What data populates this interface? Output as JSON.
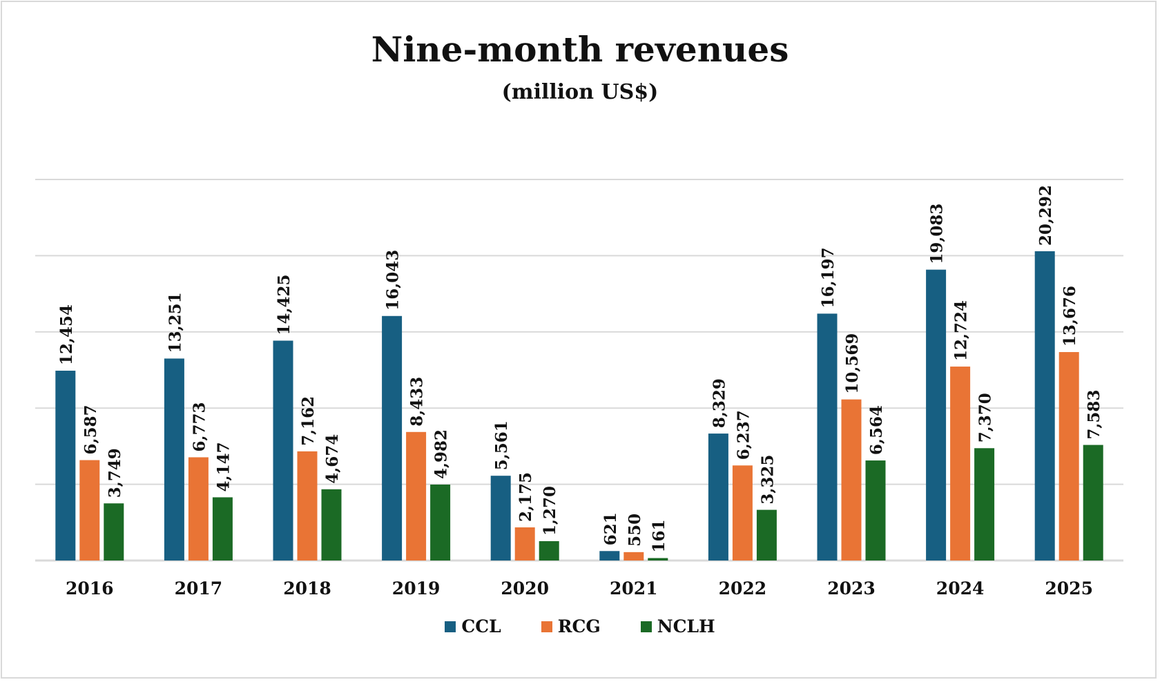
{
  "chart_data": {
    "type": "bar",
    "title": "Nine-month revenues",
    "subtitle": "(million US$)",
    "categories": [
      "2016",
      "2017",
      "2018",
      "2019",
      "2020",
      "2021",
      "2022",
      "2023",
      "2024",
      "2025"
    ],
    "series": [
      {
        "name": "CCL",
        "color": "#175f82",
        "values": [
          12454,
          13251,
          14425,
          16043,
          5561,
          621,
          8329,
          16197,
          19083,
          20292
        ],
        "labels": [
          "12,454",
          "13,251",
          "14,425",
          "16,043",
          "5,561",
          "621",
          "8,329",
          "16,197",
          "19,083",
          "20,292"
        ]
      },
      {
        "name": "RCG",
        "color": "#e97435",
        "values": [
          6587,
          6773,
          7162,
          8433,
          2175,
          550,
          6237,
          10569,
          12724,
          13676
        ],
        "labels": [
          "6,587",
          "6,773",
          "7,162",
          "8,433",
          "2,175",
          "550",
          "6,237",
          "10,569",
          "12,724",
          "13,676"
        ]
      },
      {
        "name": "NCLH",
        "color": "#1b6a25",
        "values": [
          3749,
          4147,
          4674,
          4982,
          1270,
          161,
          3325,
          6564,
          7370,
          7583
        ],
        "labels": [
          "3,749",
          "4,147",
          "4,674",
          "4,982",
          "1,270",
          "161",
          "3,325",
          "6,564",
          "7,370",
          "7,583"
        ]
      }
    ],
    "ylim": [
      0,
      25000
    ],
    "ytick_step": 5000,
    "y_tick_labels_shown": false,
    "grid": true,
    "legend": "bottom"
  }
}
